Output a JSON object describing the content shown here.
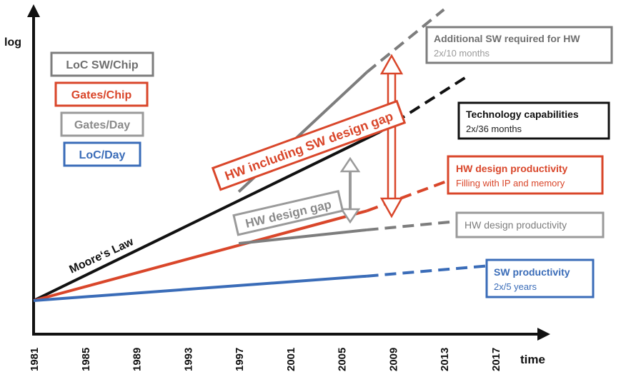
{
  "colors": {
    "black": "#111111",
    "red": "#d9462a",
    "gray": "#7d7d7d",
    "blue": "#3a6cb8",
    "light_gray": "#9a9a9a"
  },
  "chart_data": {
    "type": "line",
    "title": "",
    "xlabel": "time",
    "ylabel": "log",
    "log_scale": true,
    "x_ticks": [
      "1981",
      "1985",
      "1989",
      "1993",
      "1997",
      "2001",
      "2005",
      "2009",
      "2013",
      "2017"
    ],
    "xlim": [
      1981,
      2019
    ],
    "grid": false,
    "legend": [
      {
        "label": "LoC SW/Chip",
        "color": "#7d7d7d"
      },
      {
        "label": "Gates/Chip",
        "color": "#d9462a"
      },
      {
        "label": "Gates/Day",
        "color": "#7d7d7d"
      },
      {
        "label": "LoC/Day",
        "color": "#3a6cb8"
      }
    ],
    "legend_position": "top-left",
    "series": [
      {
        "color": "#111111",
        "x": [
          1981,
          2008
        ],
        "y_rel": [
          0.0,
          0.62
        ],
        "projection": {
          "x": [
            2008,
            2015
          ],
          "y_rel": [
            0.62,
            0.83
          ]
        }
      },
      {
        "color": "#7d7d7d",
        "x": [
          1997,
          2007
        ],
        "y_rel": [
          0.4,
          0.84
        ],
        "projection": {
          "x": [
            2007,
            2013
          ],
          "y_rel": [
            0.84,
            1.07
          ]
        }
      },
      {
        "color": "#d9462a",
        "x": [
          1981,
          2007
        ],
        "y_rel": [
          0.0,
          0.33
        ],
        "projection": {
          "x": [
            2007,
            2015
          ],
          "y_rel": [
            0.33,
            0.47
          ]
        }
      },
      {
        "color": "#7d7d7d",
        "x": [
          1997,
          2007
        ],
        "y_rel": [
          0.21,
          0.26
        ],
        "projection": {
          "x": [
            2007,
            2016
          ],
          "y_rel": [
            0.26,
            0.3
          ]
        }
      },
      {
        "color": "#3a6cb8",
        "x": [
          1981,
          2007
        ],
        "y_rel": [
          0.0,
          0.09
        ],
        "projection": {
          "x": [
            2007,
            2017
          ],
          "y_rel": [
            0.09,
            0.13
          ]
        }
      }
    ],
    "gaps": [
      {
        "label": "HW design gap",
        "color": "#9a9a9a",
        "x": 2007,
        "from_y_rel": 0.33,
        "to_y_rel": 0.6
      },
      {
        "label": "HW including SW design gap",
        "color": "#d9462a",
        "x": 2009,
        "from_y_rel": 0.26,
        "to_y_rel": 0.97
      }
    ],
    "annotations": {
      "moores_law": "Moore‘s Law",
      "additional_sw": {
        "title": "Additional SW required for HW",
        "subtitle": "2x/10 months"
      },
      "technology": {
        "title": "Technology capabilities",
        "subtitle": "2x/36 months"
      },
      "hw_design_ip": {
        "title": "HW design productivity",
        "subtitle": "Filling with IP and memory"
      },
      "hw_design": {
        "title": "HW design productivity"
      },
      "sw_productivity": {
        "title": "SW productivity",
        "subtitle": "2x/5 years"
      }
    }
  }
}
